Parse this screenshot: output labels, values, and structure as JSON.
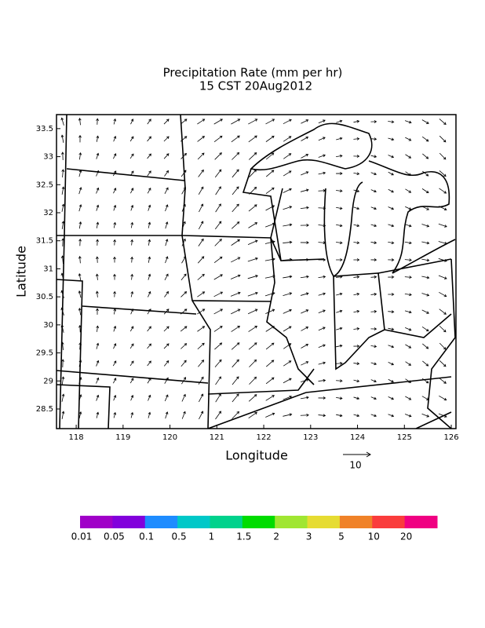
{
  "title": "Precipitation Rate (mm per hr)",
  "subtitle": "15 CST 20Aug2012",
  "map": {
    "xlabel": "Longitude",
    "ylabel": "Latitude",
    "xlim": [
      117.58,
      126.1
    ],
    "ylim": [
      28.15,
      33.75
    ],
    "xticks": [
      118,
      119,
      120,
      121,
      122,
      123,
      124,
      125,
      126
    ],
    "yticks": [
      28.5,
      29,
      29.5,
      30,
      30.5,
      31,
      31.5,
      32,
      32.5,
      33,
      33.5
    ]
  },
  "reference_vector": {
    "value": 10
  },
  "colorbar": {
    "labels": [
      0.01,
      0.05,
      0.1,
      0.5,
      1,
      1.5,
      2,
      3,
      5,
      10,
      20
    ],
    "colors": [
      "#a000c8",
      "#8200dc",
      "#1e8cff",
      "#00c8c8",
      "#00d28c",
      "#00dc00",
      "#a0e632",
      "#e6dc32",
      "#f08228",
      "#fa3c3c",
      "#f00082"
    ]
  }
}
